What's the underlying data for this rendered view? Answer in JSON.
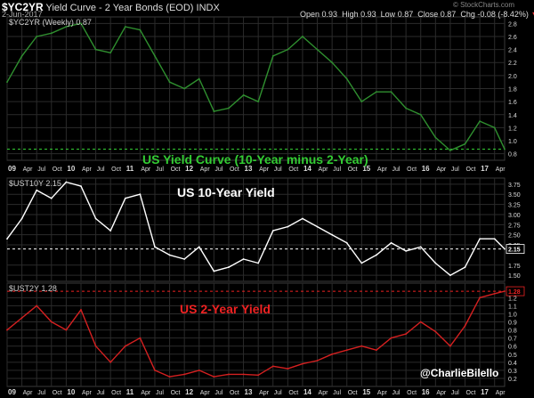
{
  "header": {
    "symbol": "$YC2YR",
    "description": "Yield Curve - 2 Year Bonds (EOD)",
    "exchange": "INDX",
    "date": "2-Jun-2017",
    "open_label": "Open",
    "open": "0.93",
    "high_label": "High",
    "high": "0.93",
    "low_label": "Low",
    "low": "0.87",
    "close_label": "Close",
    "close": "0.87",
    "chg_label": "Chg",
    "chg": "-0.08 (-8.42%)",
    "chg_arrow": "▼",
    "watermark": "© StockCharts.com"
  },
  "credit": "@CharlieBilello",
  "colors": {
    "background": "#000000",
    "green": "#2f8f2f",
    "white": "#ffffff",
    "red": "#d42020",
    "grid": "#2b2b2b",
    "text": "#cccccc",
    "green_text": "#33cc33",
    "red_text": "#ee2222"
  },
  "x_axis_labels": [
    "09",
    "Apr",
    "Jul",
    "Oct",
    "10",
    "Apr",
    "Jul",
    "Oct",
    "11",
    "Apr",
    "Jul",
    "Oct",
    "12",
    "Apr",
    "Jul",
    "Oct",
    "13",
    "Apr",
    "Jul",
    "Oct",
    "14",
    "Apr",
    "Jul",
    "Oct",
    "15",
    "Apr",
    "Jul",
    "Oct",
    "16",
    "Apr",
    "Jul",
    "Oct",
    "17",
    "Apr"
  ],
  "chart_data": [
    {
      "type": "line",
      "legend": "$YC2YR (Weekly) 0.87",
      "title": "US Yield Curve (10-Year minus 2-Year)",
      "x_start": 2009.0,
      "x_end": 2017.42,
      "ylim": [
        0.7,
        2.9
      ],
      "y_ticks": [
        "2.8",
        "2.6",
        "2.4",
        "2.2",
        "2.0",
        "1.8",
        "1.6",
        "1.4",
        "1.2",
        "1.0",
        "0.8"
      ],
      "last_value": "0.87",
      "reference_line": 0.87,
      "x": [
        2009.0,
        2009.25,
        2009.5,
        2009.75,
        2010.0,
        2010.25,
        2010.5,
        2010.75,
        2011.0,
        2011.25,
        2011.5,
        2011.75,
        2012.0,
        2012.25,
        2012.5,
        2012.75,
        2013.0,
        2013.25,
        2013.5,
        2013.75,
        2014.0,
        2014.25,
        2014.5,
        2014.75,
        2015.0,
        2015.25,
        2015.5,
        2015.75,
        2016.0,
        2016.25,
        2016.5,
        2016.75,
        2017.0,
        2017.25,
        2017.42
      ],
      "y": [
        1.9,
        2.3,
        2.6,
        2.65,
        2.75,
        2.8,
        2.4,
        2.35,
        2.75,
        2.7,
        2.3,
        1.9,
        1.8,
        1.95,
        1.45,
        1.5,
        1.7,
        1.6,
        2.3,
        2.4,
        2.6,
        2.4,
        2.2,
        1.95,
        1.6,
        1.75,
        1.75,
        1.5,
        1.4,
        1.05,
        0.85,
        0.95,
        1.3,
        1.2,
        0.87
      ]
    },
    {
      "type": "line",
      "legend": "$UST10Y 2.15",
      "title": "US 10-Year Yield",
      "x_start": 2009.0,
      "x_end": 2017.42,
      "ylim": [
        1.35,
        3.9
      ],
      "y_ticks": [
        "3.75",
        "3.50",
        "3.25",
        "3.00",
        "2.75",
        "2.50",
        "2.25",
        "2.15",
        "1.75",
        "1.50"
      ],
      "last_value": "2.15",
      "reference_line": 2.15,
      "x": [
        2009.0,
        2009.25,
        2009.5,
        2009.75,
        2010.0,
        2010.25,
        2010.5,
        2010.75,
        2011.0,
        2011.25,
        2011.5,
        2011.75,
        2012.0,
        2012.25,
        2012.5,
        2012.75,
        2013.0,
        2013.25,
        2013.5,
        2013.75,
        2014.0,
        2014.25,
        2014.5,
        2014.75,
        2015.0,
        2015.25,
        2015.5,
        2015.75,
        2016.0,
        2016.25,
        2016.5,
        2016.75,
        2017.0,
        2017.25,
        2017.42
      ],
      "y": [
        2.4,
        2.9,
        3.6,
        3.4,
        3.8,
        3.7,
        2.9,
        2.6,
        3.4,
        3.5,
        2.2,
        2.0,
        1.9,
        2.2,
        1.6,
        1.7,
        1.9,
        1.8,
        2.6,
        2.7,
        2.9,
        2.7,
        2.5,
        2.3,
        1.8,
        2.0,
        2.3,
        2.1,
        2.2,
        1.8,
        1.5,
        1.7,
        2.4,
        2.4,
        2.15
      ]
    },
    {
      "type": "line",
      "legend": "$UST2Y 1.28",
      "title": "US 2-Year Yield",
      "x_start": 2009.0,
      "x_end": 2017.42,
      "ylim": [
        0.1,
        1.38
      ],
      "y_ticks": [
        "1.28",
        "1.2",
        "1.1",
        "1.0",
        "0.9",
        "0.8",
        "0.7",
        "0.6",
        "0.5",
        "0.4",
        "0.3",
        "0.2"
      ],
      "last_value": "1.28",
      "reference_line": 1.28,
      "x": [
        2009.0,
        2009.25,
        2009.5,
        2009.75,
        2010.0,
        2010.25,
        2010.5,
        2010.75,
        2011.0,
        2011.25,
        2011.5,
        2011.75,
        2012.0,
        2012.25,
        2012.5,
        2012.75,
        2013.0,
        2013.25,
        2013.5,
        2013.75,
        2014.0,
        2014.25,
        2014.5,
        2014.75,
        2015.0,
        2015.25,
        2015.5,
        2015.75,
        2016.0,
        2016.25,
        2016.5,
        2016.75,
        2017.0,
        2017.25,
        2017.42
      ],
      "y": [
        0.8,
        0.95,
        1.1,
        0.9,
        0.8,
        1.05,
        0.6,
        0.4,
        0.6,
        0.7,
        0.3,
        0.22,
        0.25,
        0.3,
        0.22,
        0.25,
        0.25,
        0.24,
        0.35,
        0.32,
        0.38,
        0.42,
        0.5,
        0.55,
        0.6,
        0.55,
        0.7,
        0.75,
        0.9,
        0.78,
        0.6,
        0.85,
        1.2,
        1.25,
        1.28
      ]
    }
  ]
}
